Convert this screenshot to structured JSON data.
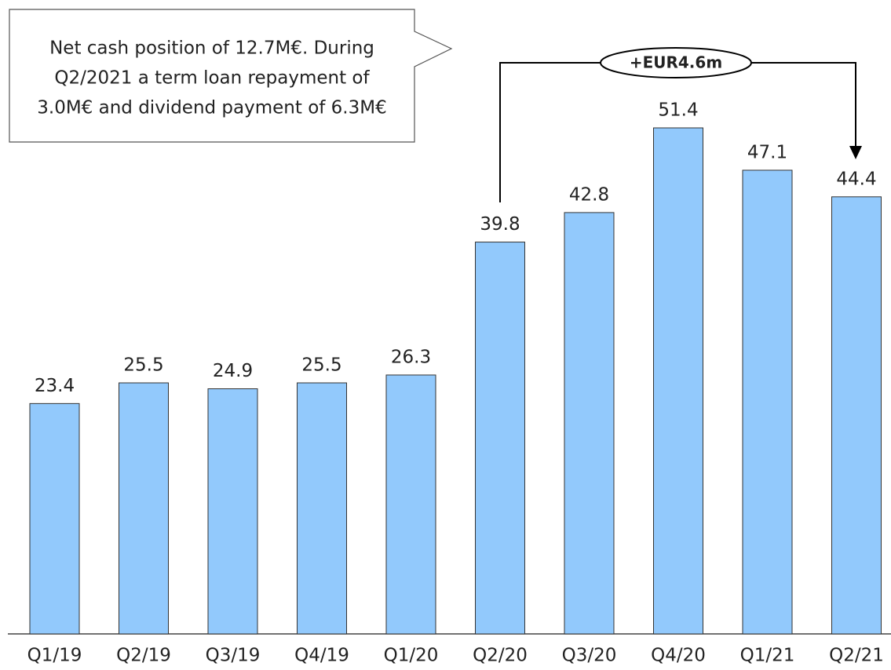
{
  "chart_data": {
    "type": "bar",
    "categories": [
      "Q1/19",
      "Q2/19",
      "Q3/19",
      "Q4/19",
      "Q1/20",
      "Q2/20",
      "Q3/20",
      "Q4/20",
      "Q1/21",
      "Q2/21"
    ],
    "values": [
      23.4,
      25.5,
      24.9,
      25.5,
      26.3,
      39.8,
      42.8,
      51.4,
      47.1,
      44.4
    ],
    "color": "#92c9fc",
    "callout": [
      "Net cash position of 12.7M€. During",
      "Q2/2021 a term loan repayment of",
      "3.0M€ and dividend payment of 6.3M€"
    ],
    "bracket_label": "+EUR4.6m"
  }
}
